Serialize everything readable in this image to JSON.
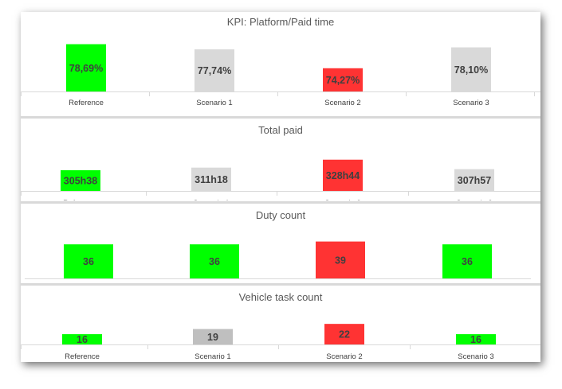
{
  "colors": {
    "good": "#00ff00",
    "neutral": "#d9d9d9",
    "neutral_dark": "#bfbfbf",
    "bad": "#ff3333",
    "axis": "#d9d9d9",
    "text": "#404040"
  },
  "chart_data": [
    {
      "type": "bar",
      "title": "KPI: Platform/Paid time",
      "categories": [
        "Reference",
        "Scenario 1",
        "Scenario 2",
        "Scenario 3"
      ],
      "values": [
        78.69,
        77.74,
        74.27,
        78.1
      ],
      "data_labels": [
        "78,69%",
        "77,74%",
        "74,27%",
        "78,10%"
      ],
      "bar_colors": [
        "#00ff00",
        "#d9d9d9",
        "#ff3333",
        "#d9d9d9"
      ],
      "ylim": [
        70,
        79.5
      ]
    },
    {
      "type": "bar",
      "title": "Total paid",
      "categories": [
        "Reference",
        "Scenario 1",
        "Scenario 2",
        "Scenario 3"
      ],
      "values": [
        305.63,
        311.3,
        328.73,
        307.95
      ],
      "data_labels": [
        "305h38",
        "311h18",
        "328h44",
        "307h57"
      ],
      "bar_colors": [
        "#00ff00",
        "#d9d9d9",
        "#ff3333",
        "#d9d9d9"
      ],
      "ylim": [
        260,
        330
      ]
    },
    {
      "type": "bar",
      "title": "Duty count",
      "categories": [
        "Reference",
        "Scenario 1",
        "Scenario 2",
        "Scenario 3"
      ],
      "values": [
        36,
        36,
        39,
        36
      ],
      "data_labels": [
        "36",
        "36",
        "39",
        "36"
      ],
      "bar_colors": [
        "#00ff00",
        "#00ff00",
        "#ff3333",
        "#00ff00"
      ],
      "ylim": [
        0,
        39.5
      ]
    },
    {
      "type": "bar",
      "title": "Vehicle task count",
      "categories": [
        "Reference",
        "Scenario 1",
        "Scenario 2",
        "Scenario 3"
      ],
      "values": [
        16,
        19,
        22,
        16
      ],
      "data_labels": [
        "16",
        "19",
        "22",
        "16"
      ],
      "bar_colors": [
        "#00ff00",
        "#bfbfbf",
        "#ff3333",
        "#00ff00"
      ],
      "ylim": [
        10,
        23
      ]
    }
  ]
}
